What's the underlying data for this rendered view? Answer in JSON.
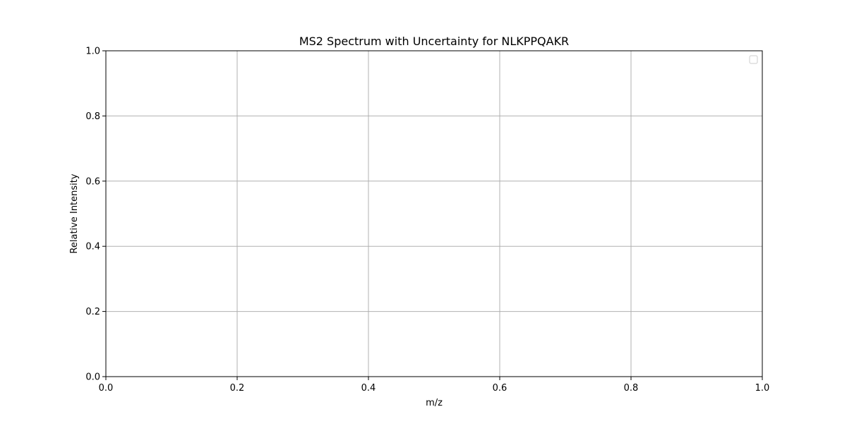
{
  "chart_data": {
    "type": "line",
    "title": "MS2 Spectrum with Uncertainty for NLKPPQAKR",
    "xlabel": "m/z",
    "ylabel": "Relative Intensity",
    "xlim": [
      0.0,
      1.0
    ],
    "ylim": [
      0.0,
      1.0
    ],
    "x_ticks": [
      "0.0",
      "0.2",
      "0.4",
      "0.6",
      "0.8",
      "1.0"
    ],
    "y_ticks": [
      "0.0",
      "0.2",
      "0.4",
      "0.6",
      "0.8",
      "1.0"
    ],
    "series": [],
    "grid": true,
    "legend": "top-right",
    "legend_entries": []
  },
  "colors": {
    "background": "#ffffff",
    "grid": "#b0b0b0",
    "axes": "#000000",
    "legend_border": "#cccccc"
  }
}
